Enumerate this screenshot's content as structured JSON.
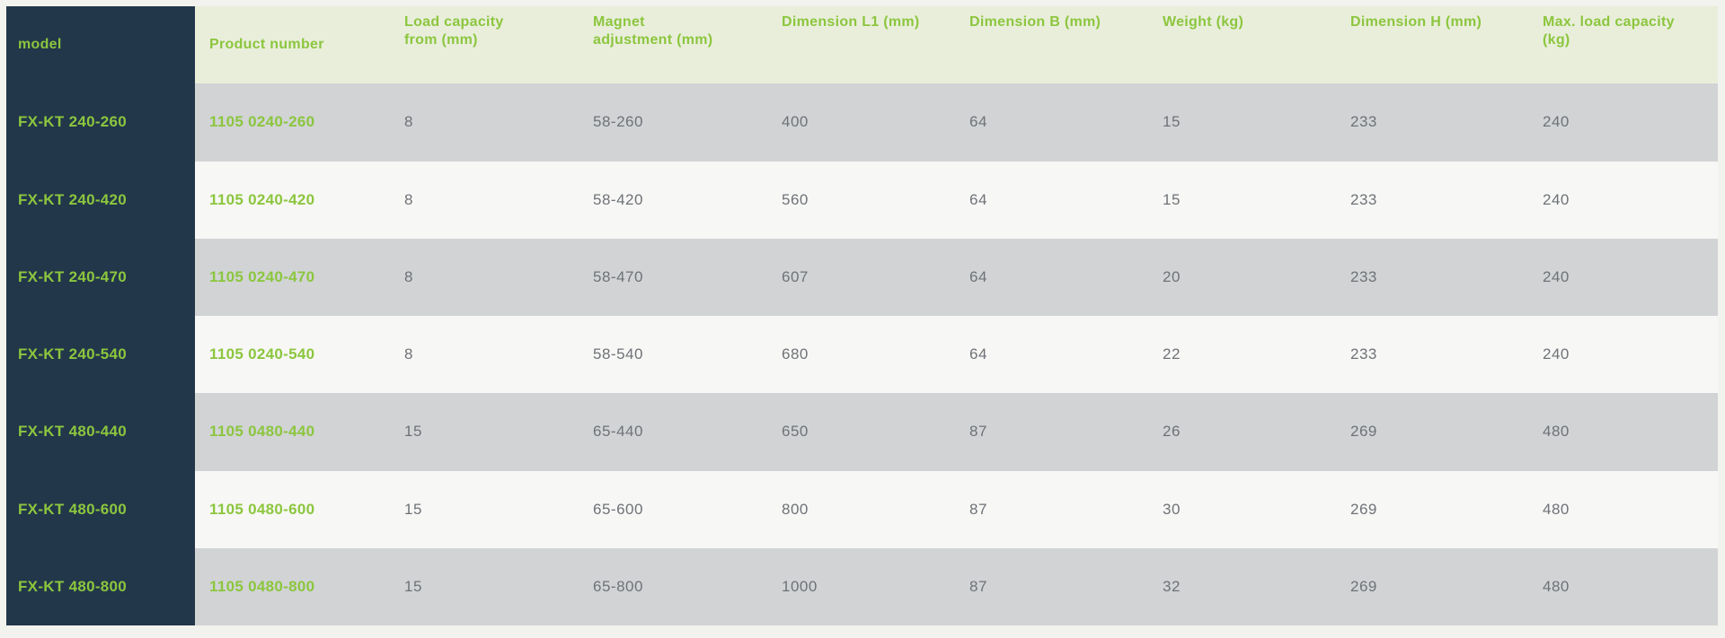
{
  "colors": {
    "page_background": "#f2f2ee",
    "header_background": "#e9eedb",
    "model_column_background": "#22374a",
    "brand_green": "#8cc63e",
    "row_gray": "#d1d3d5",
    "row_white": "#f7f7f5",
    "value_text": "#6e7277"
  },
  "table": {
    "columns": [
      {
        "key": "model",
        "label": "model"
      },
      {
        "key": "product_number",
        "label": "Product number"
      },
      {
        "key": "load_capacity",
        "label": "Load capacity\nfrom (mm)"
      },
      {
        "key": "magnet_adjust",
        "label": "Magnet\nadjustment (mm)"
      },
      {
        "key": "dimension_l1",
        "label": "Dimension L1 (mm)"
      },
      {
        "key": "dimension_b",
        "label": "Dimension B (mm)"
      },
      {
        "key": "weight",
        "label": "Weight (kg)"
      },
      {
        "key": "dimension_h",
        "label": "Dimension H (mm)"
      },
      {
        "key": "max_load",
        "label": "Max. load capacity\n(kg)"
      }
    ],
    "rows": [
      {
        "cells": [
          "FX-KT 240-260",
          "1105 0240-260",
          "8",
          "58-260",
          "400",
          "64",
          "15",
          "233",
          "240"
        ]
      },
      {
        "cells": [
          "FX-KT 240-420",
          "1105 0240-420",
          "8",
          "58-420",
          "560",
          "64",
          "15",
          "233",
          "240"
        ]
      },
      {
        "cells": [
          "FX-KT 240-470",
          "1105 0240-470",
          "8",
          "58-470",
          "607",
          "64",
          "20",
          "233",
          "240"
        ]
      },
      {
        "cells": [
          "FX-KT 240-540",
          "1105 0240-540",
          "8",
          "58-540",
          "680",
          "64",
          "22",
          "233",
          "240"
        ]
      },
      {
        "cells": [
          "FX-KT 480-440",
          "1105 0480-440",
          "15",
          "65-440",
          "650",
          "87",
          "26",
          "269",
          "480"
        ]
      },
      {
        "cells": [
          "FX-KT 480-600",
          "1105 0480-600",
          "15",
          "65-600",
          "800",
          "87",
          "30",
          "269",
          "480"
        ]
      },
      {
        "cells": [
          "FX-KT 480-800",
          "1105 0480-800",
          "15",
          "65-800",
          "1000",
          "87",
          "32",
          "269",
          "480"
        ]
      }
    ]
  }
}
